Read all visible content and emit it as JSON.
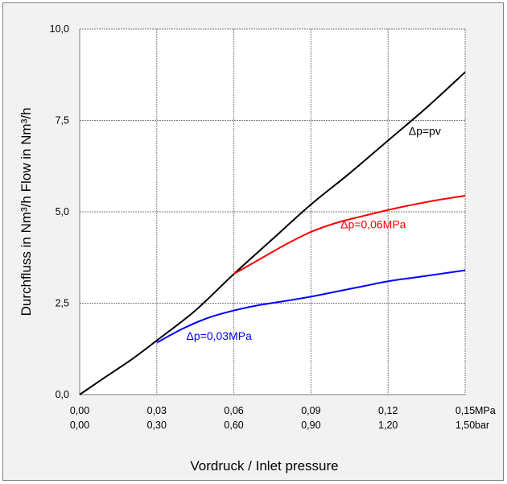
{
  "chart_data": {
    "type": "line",
    "xlabel": "Vordruck / Inlet pressure",
    "ylabel": "Durchfluss in Nm³/h   Flow in Nm³/h",
    "xlim": [
      0,
      0.15
    ],
    "ylim": [
      0,
      10
    ],
    "grid": true,
    "x_ticks_mpa": [
      "0,00",
      "0,03",
      "0,06",
      "0,09",
      "0,12",
      "0,15"
    ],
    "x_ticks_bar": [
      "0,00",
      "0,30",
      "0,60",
      "0,90",
      "1,20",
      "1,50"
    ],
    "x_unit_mpa": "MPa",
    "x_unit_bar": "bar",
    "y_ticks": [
      "0,0",
      "2,5",
      "5,0",
      "7,5",
      "10,0"
    ],
    "y_tick_values": [
      0,
      2.5,
      5,
      7.5,
      10
    ],
    "series": [
      {
        "name": "Δp=pv",
        "color": "#000000",
        "x": [
          0.0,
          0.01,
          0.02,
          0.03,
          0.045,
          0.06,
          0.075,
          0.09,
          0.105,
          0.12,
          0.135,
          0.15
        ],
        "y": [
          0.0,
          0.48,
          0.95,
          1.48,
          2.3,
          3.3,
          4.25,
          5.2,
          6.05,
          6.95,
          7.85,
          8.82
        ]
      },
      {
        "name": "Δp=0,06MPa",
        "color": "#ff0000",
        "x": [
          0.06,
          0.07,
          0.08,
          0.09,
          0.1,
          0.11,
          0.12,
          0.13,
          0.14,
          0.15
        ],
        "y": [
          3.3,
          3.7,
          4.1,
          4.45,
          4.7,
          4.88,
          5.05,
          5.2,
          5.33,
          5.44
        ]
      },
      {
        "name": "Δp=0,03MPa",
        "color": "#0000ff",
        "x": [
          0.03,
          0.04,
          0.05,
          0.06,
          0.07,
          0.08,
          0.09,
          0.1,
          0.11,
          0.12,
          0.13,
          0.14,
          0.15
        ],
        "y": [
          1.42,
          1.8,
          2.1,
          2.3,
          2.45,
          2.56,
          2.68,
          2.82,
          2.96,
          3.1,
          3.2,
          3.3,
          3.4
        ]
      }
    ],
    "annotations": [
      {
        "text": "Δp=pv",
        "x": 0.128,
        "y": 7.1,
        "color": "#000000"
      },
      {
        "text": "Δp=0,06MPa",
        "x": 0.1015,
        "y": 4.55,
        "color": "#ff0000"
      },
      {
        "text": "Δp=0,03MPa",
        "x": 0.0415,
        "y": 1.5,
        "color": "#0000ff"
      }
    ]
  }
}
